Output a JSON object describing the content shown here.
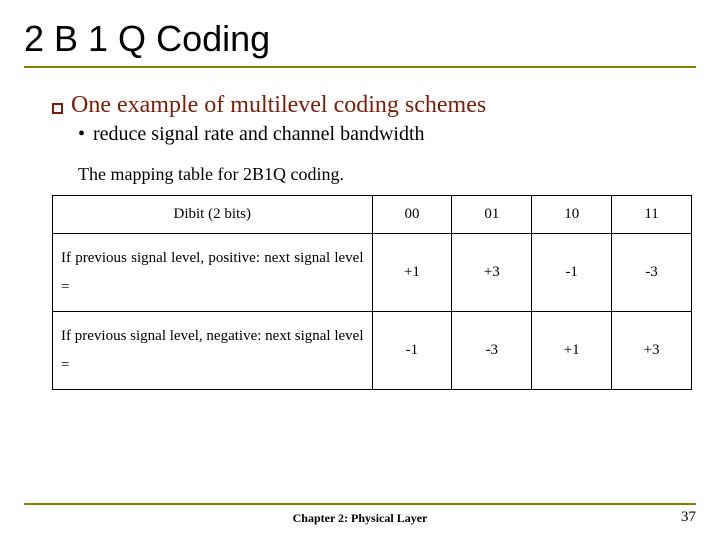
{
  "title": "2 B 1 Q Coding",
  "title_rule_color": "#808000",
  "footer_rule_color": "#808000",
  "accent_color": "#7a1d06",
  "lvl1_text": "One example of multilevel coding schemes",
  "lvl2_text": "reduce signal rate and channel bandwidth",
  "caption": "The mapping table for 2B1Q coding.",
  "table": {
    "header_label": "Dibit (2 bits)",
    "columns": [
      "00",
      "01",
      "10",
      "11"
    ],
    "rows": [
      {
        "label": "If previous signal level, positive: next signal level =",
        "values": [
          "+1",
          "+3",
          "-1",
          "-3"
        ]
      },
      {
        "label": "If previous signal level, negative: next signal level =",
        "values": [
          "-1",
          "-3",
          "+1",
          "+3"
        ]
      }
    ],
    "border_color": "#000000",
    "font_size_pt": 15
  },
  "footer": "Chapter 2: Physical Layer",
  "page_number": "37"
}
